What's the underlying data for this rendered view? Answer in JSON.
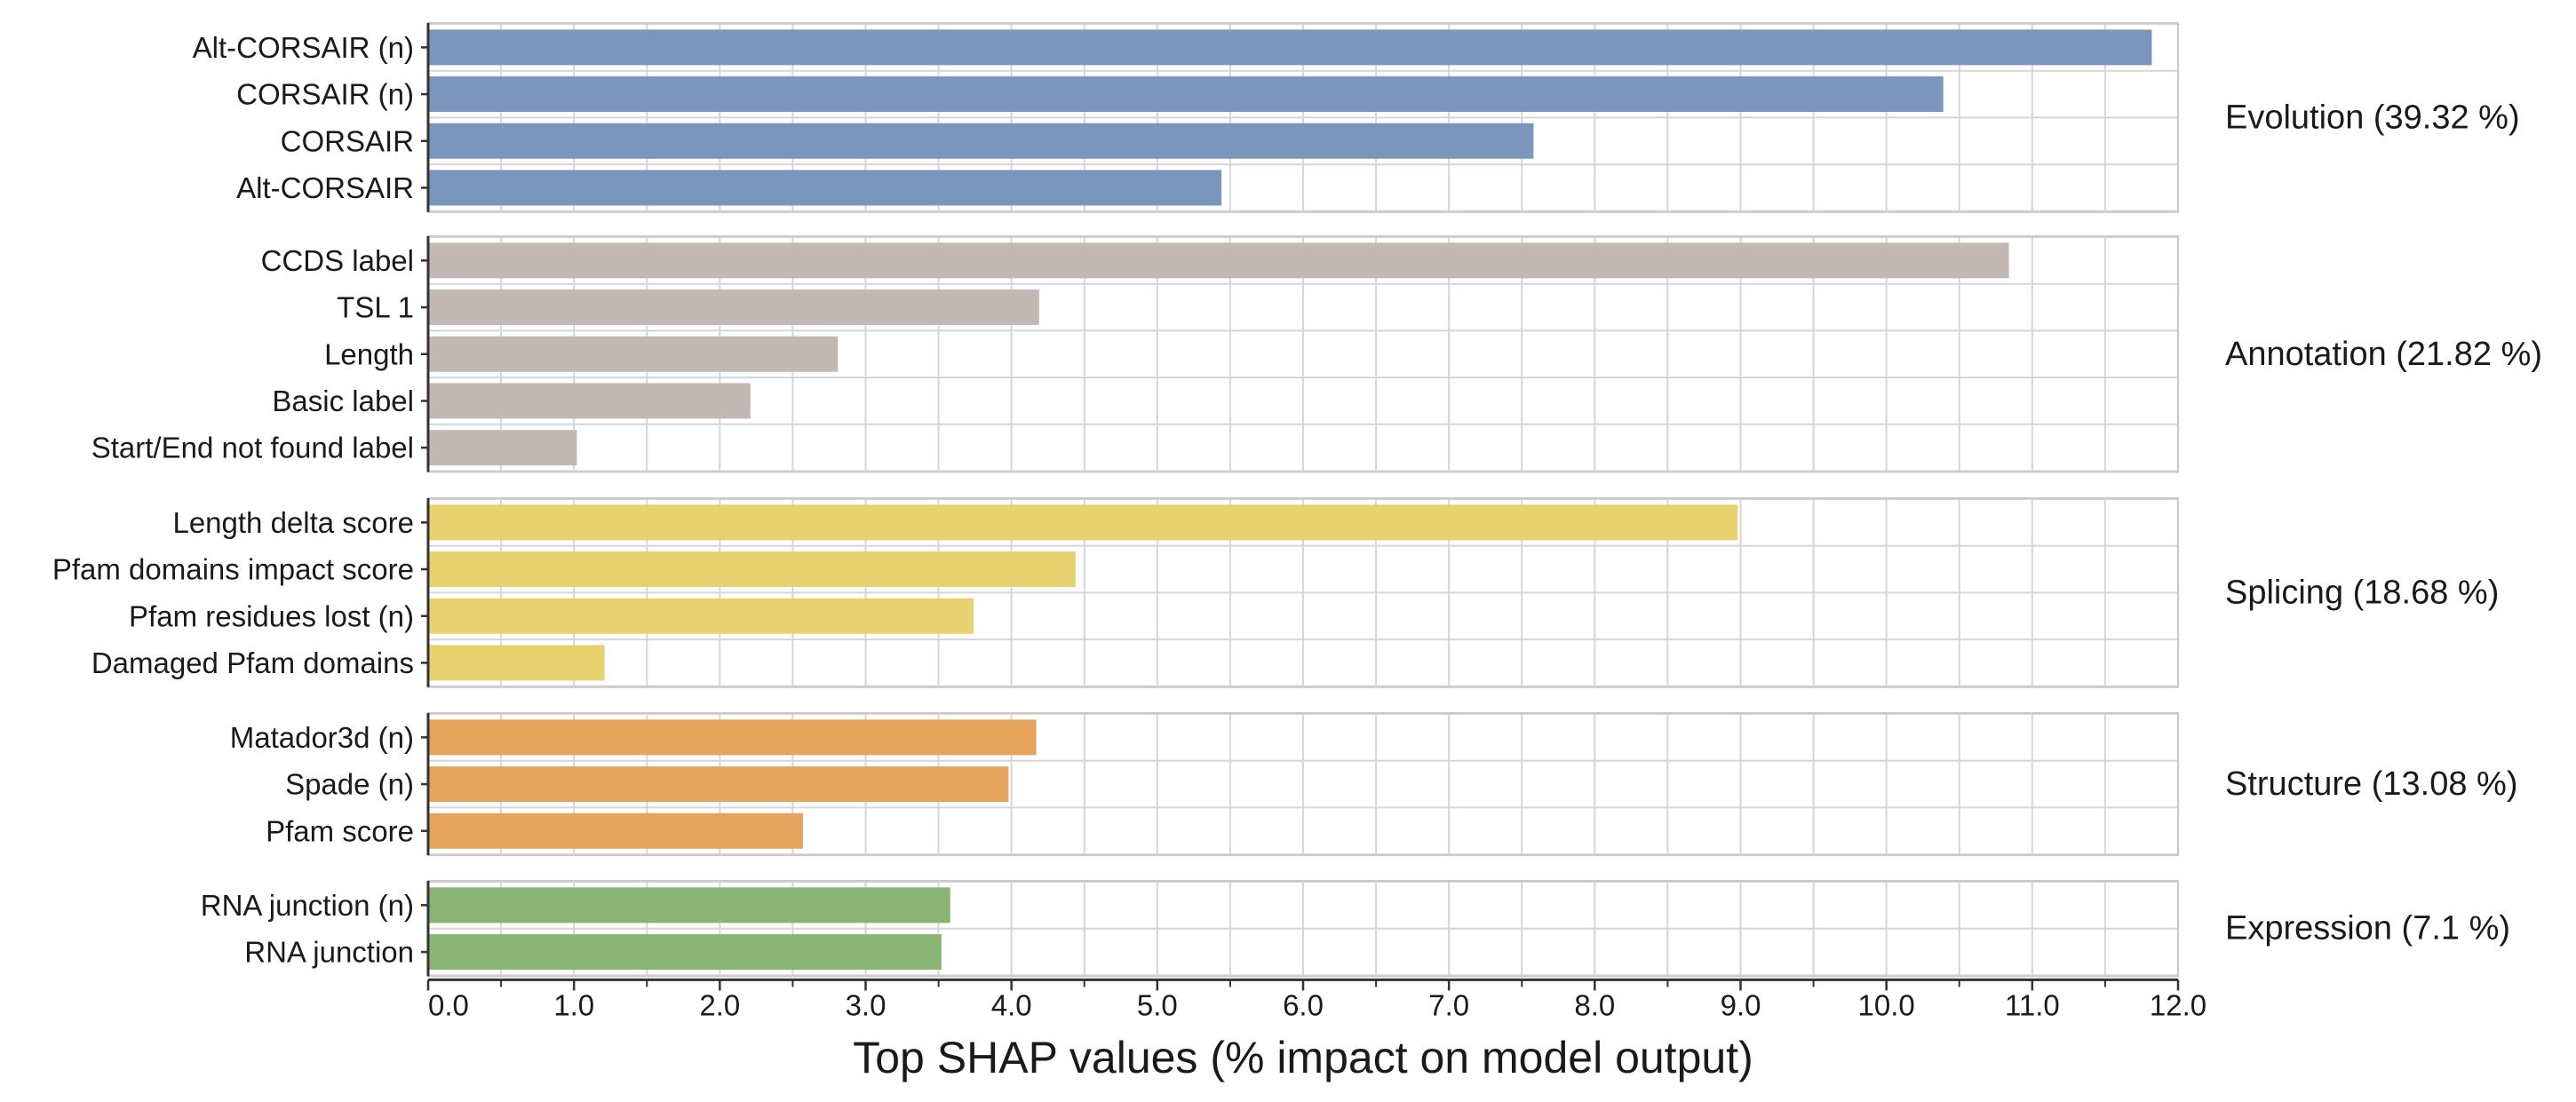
{
  "chart_data": {
    "type": "bar",
    "orientation": "horizontal",
    "xlabel": "Top SHAP values (% impact on model output)",
    "xlim": [
      0,
      12.0
    ],
    "x_ticks": [
      "0.0",
      "1.0",
      "2.0",
      "3.0",
      "4.0",
      "5.0",
      "6.0",
      "7.0",
      "8.0",
      "9.0",
      "10.0",
      "11.0",
      "12.0"
    ],
    "grid": true,
    "groups": [
      {
        "key": "evolution",
        "label": "Evolution (39.32 %)",
        "color": "#7b96bd",
        "categories": [
          "Alt-CORSAIR (n)",
          "CORSAIR (n)",
          "CORSAIR",
          "Alt-CORSAIR"
        ],
        "values": [
          11.82,
          10.39,
          7.58,
          5.44
        ]
      },
      {
        "key": "annotation",
        "label": "Annotation (21.82 %)",
        "color": "#c2b9b5",
        "categories": [
          "CCDS label",
          "TSL 1",
          "Length",
          "Basic label",
          "Start/End not found label"
        ],
        "values": [
          10.84,
          4.19,
          2.81,
          2.21,
          1.02
        ]
      },
      {
        "key": "splicing",
        "label": "Splicing (18.68 %)",
        "color": "#e8d270",
        "categories": [
          "Length delta score",
          "Pfam domains impact score",
          "Pfam residues lost (n)",
          "Damaged Pfam domains"
        ],
        "values": [
          8.98,
          4.44,
          3.74,
          1.21
        ]
      },
      {
        "key": "structure",
        "label": "Structure (13.08 %)",
        "color": "#e5a45c",
        "categories": [
          "Matador3d (n)",
          "Spade (n)",
          "Pfam score"
        ],
        "values": [
          4.17,
          3.98,
          2.57
        ]
      },
      {
        "key": "expression",
        "label": "Expression (7.1 %)",
        "color": "#8ab473",
        "categories": [
          "RNA junction (n)",
          "RNA junction"
        ],
        "values": [
          3.58,
          3.52
        ]
      }
    ]
  }
}
